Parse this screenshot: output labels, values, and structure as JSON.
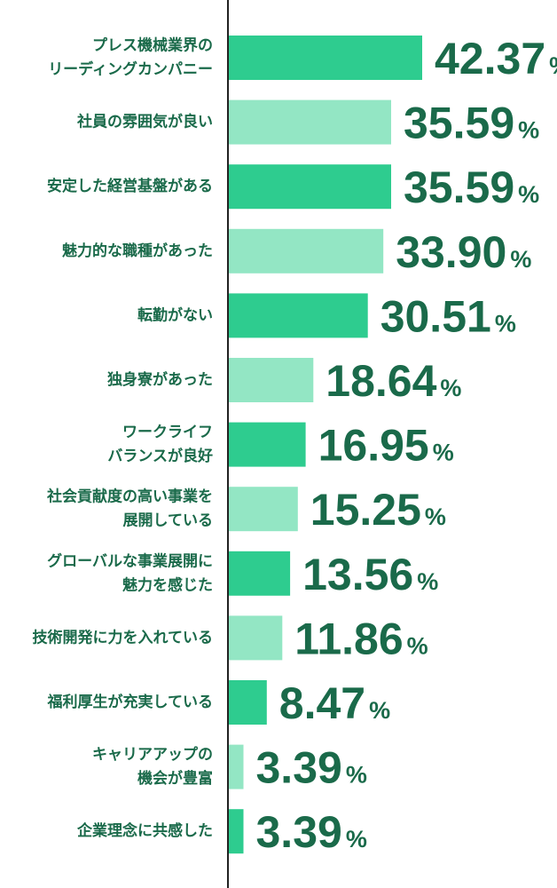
{
  "chart_data": {
    "type": "bar",
    "orientation": "horizontal",
    "unit": "%",
    "categories": [
      "プレス機械業界のリーディングカンパニー",
      "社員の雰囲気が良い",
      "安定した経営基盤がある",
      "魅力的な職種があった",
      "転勤がない",
      "独身寮があった",
      "ワークライフバランスが良好",
      "社会貢献度の高い事業を展開している",
      "グローバルな事業展開に魅力を感じた",
      "技術開発に力を入れている",
      "福利厚生が充実している",
      "キャリアアップの機会が豊富",
      "企業理念に共感した"
    ],
    "label_lines": [
      [
        "プレス機械業界の",
        "リーディングカンパニー"
      ],
      [
        "社員の雰囲気が良い"
      ],
      [
        "安定した経営基盤がある"
      ],
      [
        "魅力的な職種があった"
      ],
      [
        "転勤がない"
      ],
      [
        "独身寮があった"
      ],
      [
        "ワークライフ",
        "バランスが良好"
      ],
      [
        "社会貢献度の高い事業を",
        "展開している"
      ],
      [
        "グローバルな事業展開に",
        "魅力を感じた"
      ],
      [
        "技術開発に力を入れている"
      ],
      [
        "福利厚生が充実している"
      ],
      [
        "キャリアアップの",
        "機会が豊富"
      ],
      [
        "企業理念に共感した"
      ]
    ],
    "values": [
      42.37,
      35.59,
      35.59,
      33.9,
      30.51,
      18.64,
      16.95,
      15.25,
      13.56,
      11.86,
      8.47,
      3.39,
      3.39
    ],
    "value_labels": [
      "42.37",
      "35.59",
      "35.59",
      "33.90",
      "30.51",
      "18.64",
      "16.95",
      "15.25",
      "13.56",
      "11.86",
      "8.47",
      "3.39",
      "3.39"
    ],
    "xlim": [
      0,
      50
    ],
    "grid": false,
    "legend": "none",
    "colors": {
      "bar_dark": "#2ecc8f",
      "bar_light": "#93e6c4",
      "text": "#1a6a4a",
      "axis": "#222222"
    }
  }
}
